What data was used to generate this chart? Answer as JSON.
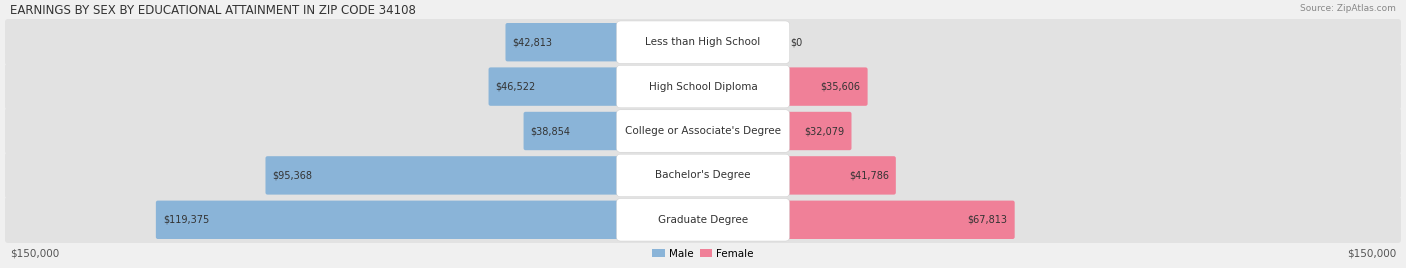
{
  "title": "EARNINGS BY SEX BY EDUCATIONAL ATTAINMENT IN ZIP CODE 34108",
  "source": "Source: ZipAtlas.com",
  "categories": [
    "Less than High School",
    "High School Diploma",
    "College or Associate's Degree",
    "Bachelor's Degree",
    "Graduate Degree"
  ],
  "male_values": [
    42813,
    46522,
    38854,
    95368,
    119375
  ],
  "female_values": [
    0,
    35606,
    32079,
    41786,
    67813
  ],
  "max_value": 150000,
  "male_color": "#8ab4d8",
  "female_color": "#f08098",
  "male_label": "Male",
  "female_label": "Female",
  "axis_label": "$150,000",
  "title_fontsize": 8.5,
  "label_fontsize": 7.5,
  "value_fontsize": 7,
  "cat_fontsize": 7.5
}
